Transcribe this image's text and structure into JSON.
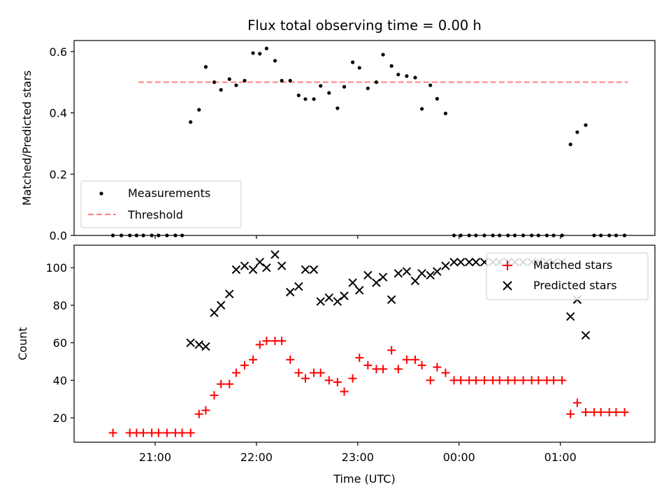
{
  "chart_data": [
    {
      "type": "scatter",
      "title": "Flux total observing time = 0.00 h",
      "xlabel": "",
      "ylabel": "Matched/Predicted stars",
      "ylim": [
        0,
        0.636
      ],
      "yticks": [
        "0.0",
        "0.2",
        "0.4",
        "0.6"
      ],
      "legend": {
        "placement": "lower-left",
        "entries": [
          "Measurements",
          "Threshold"
        ]
      },
      "threshold": {
        "name": "Threshold",
        "value": 0.5,
        "x_start": "20:50",
        "x_end": "01:40",
        "color": "#ff8080"
      },
      "series": [
        {
          "name": "Measurements",
          "color": "#000000",
          "x": [
            "20:35",
            "20:40",
            "20:45",
            "20:49",
            "20:53",
            "20:58",
            "21:02",
            "21:07",
            "21:12",
            "21:16",
            "21:21",
            "21:26",
            "21:30",
            "21:35",
            "21:39",
            "21:44",
            "21:48",
            "21:53",
            "21:58",
            "22:02",
            "22:06",
            "22:11",
            "22:15",
            "22:20",
            "22:25",
            "22:29",
            "22:34",
            "22:38",
            "22:43",
            "22:48",
            "22:52",
            "22:57",
            "23:01",
            "23:06",
            "23:11",
            "23:15",
            "23:20",
            "23:24",
            "23:29",
            "23:34",
            "23:38",
            "23:43",
            "23:47",
            "23:52",
            "23:57",
            "00:01",
            "00:06",
            "00:10",
            "00:15",
            "00:20",
            "00:24",
            "00:29",
            "00:33",
            "00:38",
            "00:43",
            "00:47",
            "00:52",
            "00:56",
            "01:01",
            "01:06",
            "01:10",
            "01:15",
            "01:20",
            "01:24",
            "01:29",
            "01:33",
            "01:38"
          ],
          "y": [
            0.0,
            0.0,
            0.0,
            0.0,
            0.0,
            0.0,
            0.0,
            0.0,
            0.0,
            0.0,
            0.37,
            0.41,
            0.55,
            0.5,
            0.475,
            0.51,
            0.49,
            0.505,
            0.595,
            0.593,
            0.61,
            0.57,
            0.505,
            0.505,
            0.457,
            0.445,
            0.445,
            0.488,
            0.465,
            0.415,
            0.485,
            0.565,
            0.547,
            0.48,
            0.5,
            0.59,
            0.553,
            0.525,
            0.52,
            0.515,
            0.413,
            0.49,
            0.446,
            0.398,
            0.0,
            0.0,
            0.0,
            0.0,
            0.0,
            0.0,
            0.0,
            0.0,
            0.0,
            0.0,
            0.0,
            0.0,
            0.0,
            0.0,
            0.0,
            0.297,
            0.337,
            0.36,
            0.0,
            0.0,
            0.0,
            0.0,
            0.0
          ]
        }
      ]
    },
    {
      "type": "scatter",
      "title": "",
      "xlabel": "Time (UTC)",
      "ylabel": "Count",
      "ylim": [
        7,
        112
      ],
      "yticks": [
        "20",
        "40",
        "60",
        "80",
        "100"
      ],
      "xticks": [
        "21:00",
        "22:00",
        "23:00",
        "00:00",
        "01:00"
      ],
      "legend": {
        "placement": "upper-right",
        "entries": [
          "Matched stars",
          "Predicted stars"
        ]
      },
      "series": [
        {
          "name": "Matched stars",
          "color": "#ff0000",
          "marker": "+",
          "x": [
            "20:35",
            "20:45",
            "20:49",
            "20:53",
            "20:58",
            "21:02",
            "21:07",
            "21:12",
            "21:16",
            "21:21",
            "21:26",
            "21:30",
            "21:35",
            "21:39",
            "21:44",
            "21:48",
            "21:53",
            "21:58",
            "22:02",
            "22:06",
            "22:11",
            "22:15",
            "22:20",
            "22:25",
            "22:29",
            "22:34",
            "22:38",
            "22:43",
            "22:48",
            "22:52",
            "22:57",
            "23:01",
            "23:06",
            "23:11",
            "23:15",
            "23:20",
            "23:24",
            "23:29",
            "23:34",
            "23:38",
            "23:43",
            "23:47",
            "23:52",
            "23:57",
            "00:01",
            "00:06",
            "00:10",
            "00:15",
            "00:20",
            "00:24",
            "00:29",
            "00:33",
            "00:38",
            "00:43",
            "00:47",
            "00:52",
            "00:56",
            "01:01",
            "01:06",
            "01:10",
            "01:15",
            "01:20",
            "01:24",
            "01:29",
            "01:33",
            "01:38"
          ],
          "y": [
            12,
            12,
            12,
            12,
            12,
            12,
            12,
            12,
            12,
            12,
            22,
            24,
            32,
            38,
            38,
            44,
            48,
            51,
            59,
            61,
            61,
            61,
            51,
            44,
            41,
            44,
            44,
            40,
            39,
            34,
            41,
            52,
            48,
            46,
            46,
            56,
            46,
            51,
            51,
            48,
            40,
            47,
            44,
            40,
            40,
            40,
            40,
            40,
            40,
            40,
            40,
            40,
            40,
            40,
            40,
            40,
            40,
            40,
            22,
            28,
            23,
            23,
            23,
            23,
            23,
            23
          ]
        },
        {
          "name": "Predicted stars",
          "color": "#000000",
          "marker": "x",
          "x": [
            "21:21",
            "21:26",
            "21:30",
            "21:35",
            "21:39",
            "21:44",
            "21:48",
            "21:53",
            "21:58",
            "22:02",
            "22:06",
            "22:11",
            "22:15",
            "22:20",
            "22:25",
            "22:29",
            "22:34",
            "22:38",
            "22:43",
            "22:48",
            "22:52",
            "22:57",
            "23:01",
            "23:06",
            "23:11",
            "23:15",
            "23:20",
            "23:24",
            "23:29",
            "23:34",
            "23:38",
            "23:43",
            "23:47",
            "23:52",
            "23:57",
            "00:01",
            "00:06",
            "00:10",
            "00:15",
            "00:20",
            "00:24",
            "00:29",
            "00:33",
            "00:38",
            "00:43",
            "00:47",
            "00:52",
            "00:56",
            "01:01",
            "01:06",
            "01:10",
            "01:15"
          ],
          "y": [
            60,
            59,
            58,
            76,
            80,
            86,
            99,
            101,
            99,
            103,
            100,
            107,
            101,
            87,
            90,
            99,
            99,
            82,
            84,
            82,
            85,
            92,
            88,
            96,
            92,
            95,
            83,
            97,
            98,
            93,
            97,
            96,
            98,
            101,
            103,
            103,
            103,
            103,
            103,
            103,
            103,
            103,
            103,
            103,
            103,
            103,
            103,
            103,
            103,
            74,
            83,
            64
          ]
        }
      ]
    }
  ]
}
